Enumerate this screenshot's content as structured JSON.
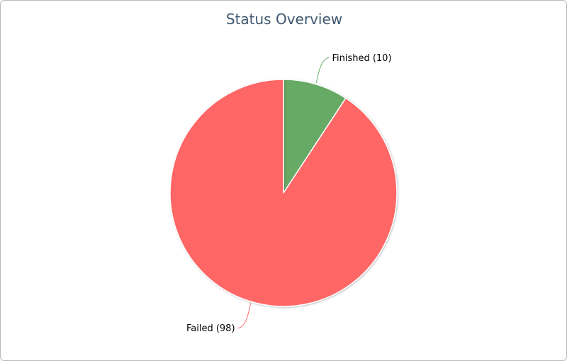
{
  "chart_data": {
    "type": "pie",
    "title": "Status Overview",
    "slices": [
      {
        "label": "Finished (10)",
        "name": "Finished",
        "value": 10,
        "color": "#66aa66"
      },
      {
        "label": "Failed (98)",
        "name": "Failed",
        "value": 98,
        "color": "#ff6666"
      }
    ],
    "start": "12 o'clock, clockwise"
  }
}
